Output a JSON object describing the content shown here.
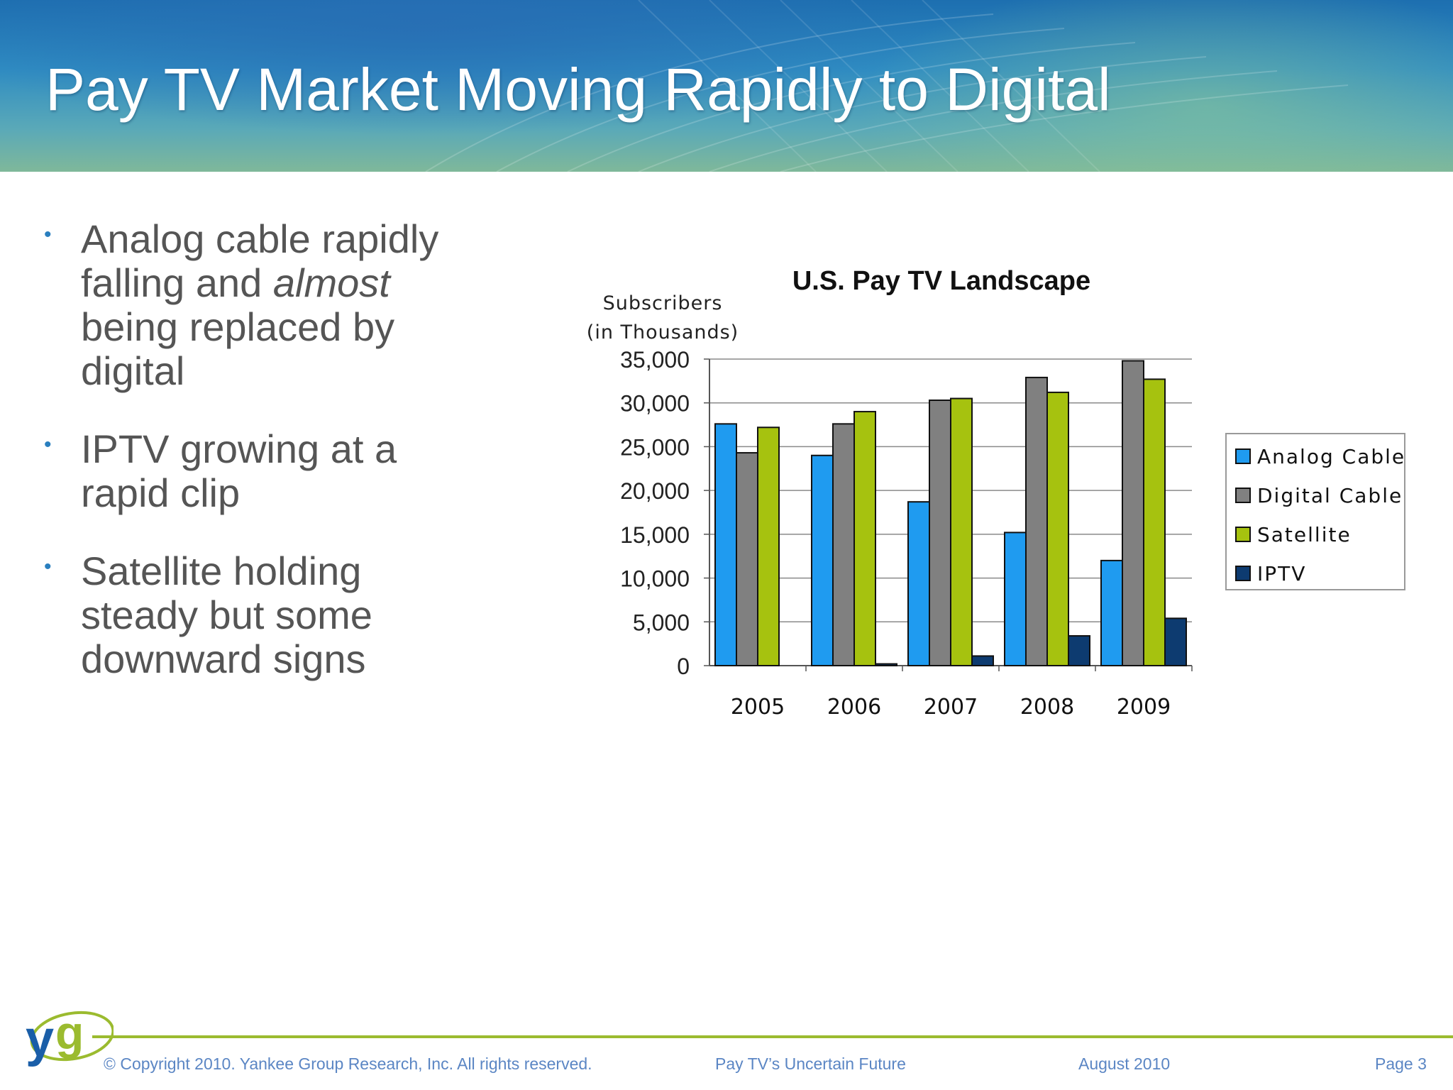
{
  "slide": {
    "title": "Pay TV Market Moving Rapidly to Digital"
  },
  "bullets": [
    {
      "parts": [
        {
          "text": "Analog cable rapidly falling and "
        },
        {
          "text": "almost",
          "italic": true
        },
        {
          "text": " being replaced by digital"
        }
      ]
    },
    {
      "parts": [
        {
          "text": "IPTV growing at a rapid clip"
        }
      ]
    },
    {
      "parts": [
        {
          "text": "Satellite holding steady but some downward signs"
        }
      ]
    }
  ],
  "chart_data": {
    "type": "bar",
    "title": "U.S. Pay TV Landscape",
    "ylabel": [
      "Subscribers",
      "(in Thousands)"
    ],
    "xlabel": "",
    "categories": [
      "2005",
      "2006",
      "2007",
      "2008",
      "2009"
    ],
    "ylim": [
      0,
      35000
    ],
    "ytick_step": 5000,
    "yticks": [
      "0",
      "5,000",
      "10,000",
      "15,000",
      "20,000",
      "25,000",
      "30,000",
      "35,000"
    ],
    "grid": true,
    "legend_position": "right",
    "series": [
      {
        "name": "Analog Cable",
        "color": "#1f9bf0",
        "values": [
          27600,
          24000,
          18700,
          15200,
          12000
        ]
      },
      {
        "name": "Digital Cable",
        "color": "#808080",
        "values": [
          24300,
          27600,
          30300,
          32900,
          34800
        ]
      },
      {
        "name": "Satellite",
        "color": "#a6c20f",
        "values": [
          27200,
          29000,
          30500,
          31200,
          32700
        ]
      },
      {
        "name": "IPTV",
        "color": "#0d3b70",
        "values": [
          0,
          200,
          1100,
          3400,
          5400
        ]
      }
    ]
  },
  "footer": {
    "copyright": "© Copyright 2010. Yankee Group Research, Inc.  All rights reserved.",
    "presentation": "Pay TV’s Uncertain Future",
    "date": "August 2010",
    "page": "Page 3",
    "logo_text": "yg"
  },
  "colors": {
    "footer_line": "#9bbb2f",
    "footer_text": "#5b86c4",
    "bullet_dot": "#2a7fbf",
    "logo_y": "#1a5ea8",
    "logo_g": "#9bbb2f"
  }
}
